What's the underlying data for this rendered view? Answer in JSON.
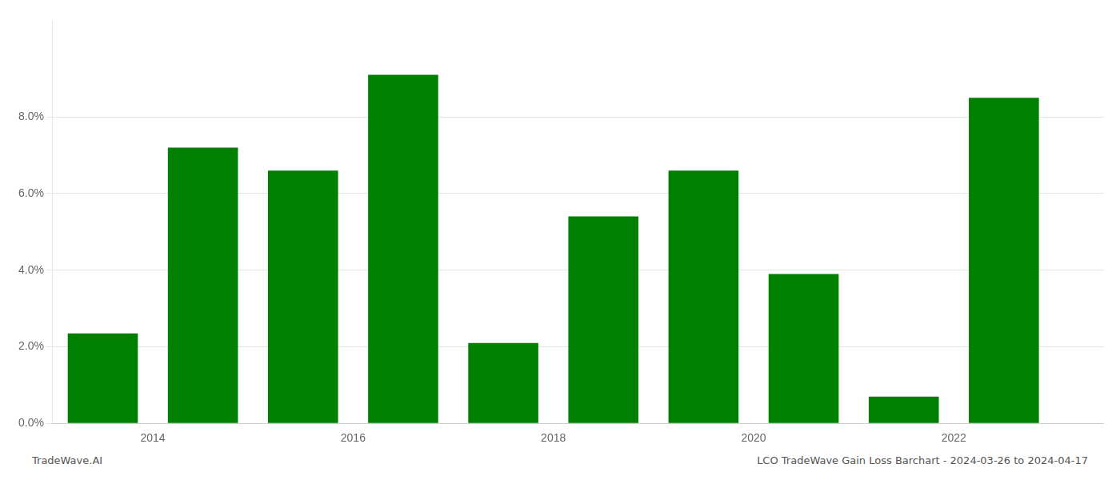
{
  "chart_data": {
    "type": "bar",
    "x": [
      2013.5,
      2014.5,
      2015.5,
      2016.5,
      2017.5,
      2018.5,
      2019.5,
      2020.5,
      2021.5,
      2022.5
    ],
    "values": [
      0.0235,
      0.072,
      0.066,
      0.091,
      0.021,
      0.054,
      0.066,
      0.039,
      0.007,
      0.085
    ],
    "color": "#008000",
    "xlim": [
      2013.0,
      2023.5
    ],
    "xticks": [
      2014,
      2016,
      2018,
      2020,
      2022
    ],
    "ylim": [
      0,
      0.105
    ],
    "yticks": [
      {
        "value": 0.0,
        "label": "0.0%"
      },
      {
        "value": 0.02,
        "label": "2.0%"
      },
      {
        "value": 0.04,
        "label": "4.0%"
      },
      {
        "value": 0.06,
        "label": "6.0%"
      },
      {
        "value": 0.08,
        "label": "8.0%"
      }
    ],
    "grid": "y",
    "annotations": [
      "TradeWave.AI",
      "LCO TradeWave Gain Loss Barchart - 2024-03-26 to 2024-04-17"
    ]
  }
}
